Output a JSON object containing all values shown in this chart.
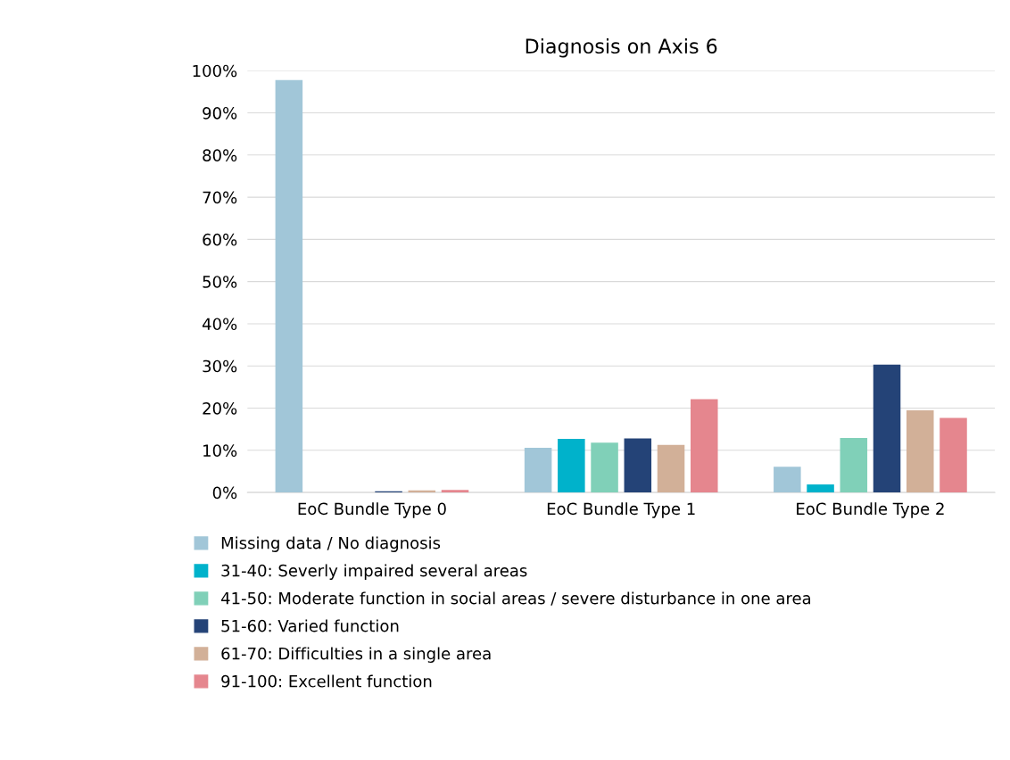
{
  "chart_data": {
    "type": "bar",
    "title": "Diagnosis on Axis 6",
    "categories": [
      "EoC Bundle Type 0",
      "EoC Bundle Type 1",
      "EoC Bundle Type 2"
    ],
    "series": [
      {
        "name": "Missing data / No diagnosis",
        "color": "#a1c6d8",
        "values": [
          97.8,
          10.6,
          6.1
        ]
      },
      {
        "name": "31-40: Severly impaired several areas",
        "color": "#00b2cb",
        "values": [
          0,
          12.7,
          1.9
        ]
      },
      {
        "name": "41-50: Moderate function in social areas / severe disturbance in one area",
        "color": "#80d0b8",
        "values": [
          0,
          11.8,
          12.9
        ]
      },
      {
        "name": "51-60: Varied function",
        "color": "#244377",
        "values": [
          0.3,
          12.8,
          30.3
        ]
      },
      {
        "name": "61-70: Difficulties in a single area",
        "color": "#d2b098",
        "values": [
          0.5,
          11.3,
          19.5
        ]
      },
      {
        "name": "91-100: Excellent function",
        "color": "#e5868e",
        "values": [
          0.6,
          22.1,
          17.7
        ]
      }
    ],
    "ylim": [
      0,
      100
    ],
    "yticks": [
      {
        "value": 0,
        "label": "0%"
      },
      {
        "value": 10,
        "label": "10%"
      },
      {
        "value": 20,
        "label": "20%"
      },
      {
        "value": 30,
        "label": "30%"
      },
      {
        "value": 40,
        "label": "40%"
      },
      {
        "value": 50,
        "label": "50%"
      },
      {
        "value": 60,
        "label": "60%"
      },
      {
        "value": 70,
        "label": "70%"
      },
      {
        "value": 80,
        "label": "80%"
      },
      {
        "value": 90,
        "label": "90%"
      },
      {
        "value": 100,
        "label": "100%"
      }
    ],
    "grid": "y",
    "legend": "bottom"
  }
}
